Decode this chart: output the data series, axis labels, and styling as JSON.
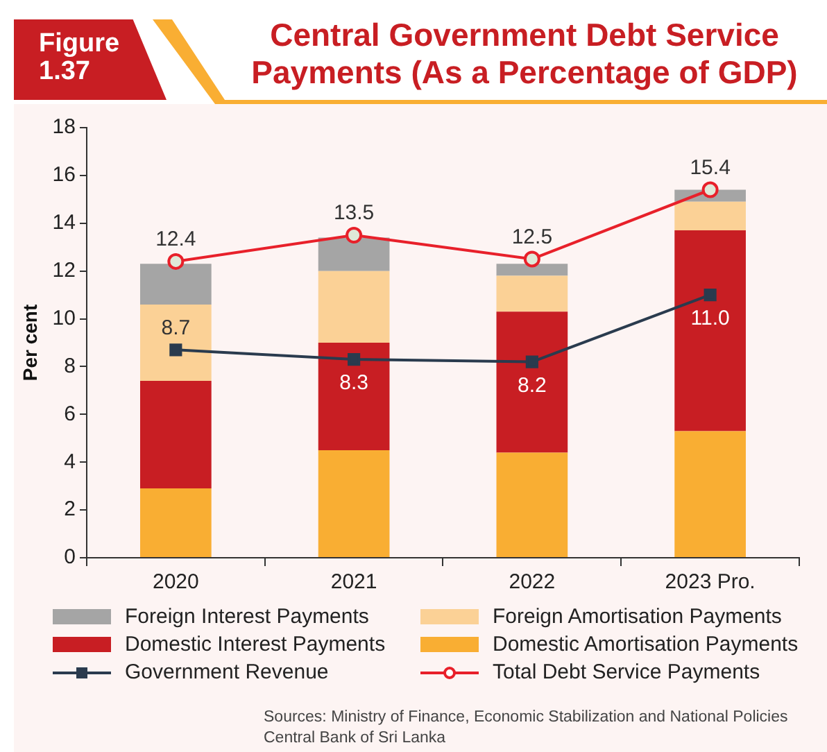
{
  "chart_data": {
    "type": "bar",
    "title": "Central Government Debt Service Payments (As a Percentage of GDP)",
    "ylabel": "Per cent",
    "categories": [
      "2020",
      "2021",
      "2022",
      "2023 Pro."
    ],
    "stacked": true,
    "series": [
      {
        "name": "Domestic Amortisation Payments",
        "color": "#f9ae33",
        "values": [
          2.9,
          4.5,
          4.4,
          5.3
        ]
      },
      {
        "name": "Domestic Interest Payments",
        "color": "#c81e23",
        "values": [
          4.5,
          4.5,
          5.9,
          8.4
        ]
      },
      {
        "name": "Foreign Amortisation Payments",
        "color": "#fbd196",
        "values": [
          3.2,
          3.0,
          1.5,
          1.2
        ]
      },
      {
        "name": "Foreign Interest Payments",
        "color": "#a5a5a5",
        "values": [
          1.7,
          1.4,
          0.5,
          0.5
        ]
      },
      {
        "name": "Government Revenue",
        "type": "line",
        "color": "#2a3b4e",
        "marker": "square",
        "values": [
          8.7,
          8.3,
          8.2,
          11.0
        ],
        "value_labels": [
          "8.7",
          "8.3",
          "8.2",
          "11.0"
        ]
      },
      {
        "name": "Total Debt Service Payments",
        "type": "line",
        "color": "#e8202a",
        "marker": "circle",
        "values": [
          12.4,
          13.5,
          12.5,
          15.4
        ],
        "value_labels": [
          "12.4",
          "13.5",
          "12.5",
          "15.4"
        ]
      }
    ],
    "ylim": [
      0,
      18
    ],
    "yticks": [
      0,
      2,
      4,
      6,
      8,
      10,
      12,
      14,
      16,
      18
    ],
    "grid": false,
    "legend": "bottom",
    "annotations": [
      "Figure 1.37",
      "Sources: Ministry of Finance, Economic Stabilization and National Policies\nCentral Bank of Sri Lanka"
    ]
  }
}
